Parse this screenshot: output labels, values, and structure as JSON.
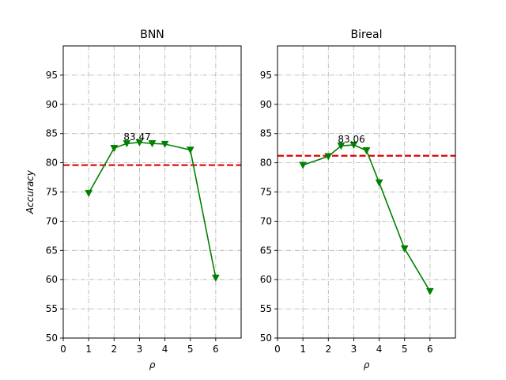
{
  "chart_data": [
    {
      "type": "line",
      "title": "BNN",
      "xlabel": "ρ",
      "ylabel": "Accuracy",
      "xlim": [
        0,
        7
      ],
      "ylim": [
        50,
        100
      ],
      "xticks": [
        0,
        1,
        2,
        3,
        4,
        5,
        6
      ],
      "yticks": [
        50,
        55,
        60,
        65,
        70,
        75,
        80,
        85,
        90,
        95
      ],
      "grid": true,
      "series": [
        {
          "x": [
            1,
            2,
            2.5,
            3,
            3.5,
            4,
            5,
            6
          ],
          "y": [
            74.8,
            82.5,
            83.3,
            83.47,
            83.3,
            83.2,
            82.2,
            60.3
          ],
          "color": "#008000",
          "marker": "triangle-down"
        }
      ],
      "reference_line": {
        "y": 79.6,
        "color": "#e00000",
        "style": "dashed"
      },
      "annotation": {
        "text": "83.47",
        "x": 3,
        "y": 83.47
      }
    },
    {
      "type": "line",
      "title": "Bireal",
      "xlabel": "ρ",
      "ylabel": "",
      "xlim": [
        0,
        7
      ],
      "ylim": [
        50,
        100
      ],
      "xticks": [
        0,
        1,
        2,
        3,
        4,
        5,
        6
      ],
      "yticks": [
        50,
        55,
        60,
        65,
        70,
        75,
        80,
        85,
        90,
        95
      ],
      "grid": true,
      "series": [
        {
          "x": [
            1,
            2,
            2.5,
            3,
            3.5,
            4,
            5,
            6
          ],
          "y": [
            79.6,
            81.1,
            82.9,
            83.06,
            82.1,
            76.6,
            65.3,
            58.0
          ],
          "color": "#008000",
          "marker": "triangle-down"
        }
      ],
      "reference_line": {
        "y": 81.2,
        "color": "#e00000",
        "style": "dashed"
      },
      "annotation": {
        "text": "83.06",
        "x": 3,
        "y": 83.06
      }
    }
  ]
}
